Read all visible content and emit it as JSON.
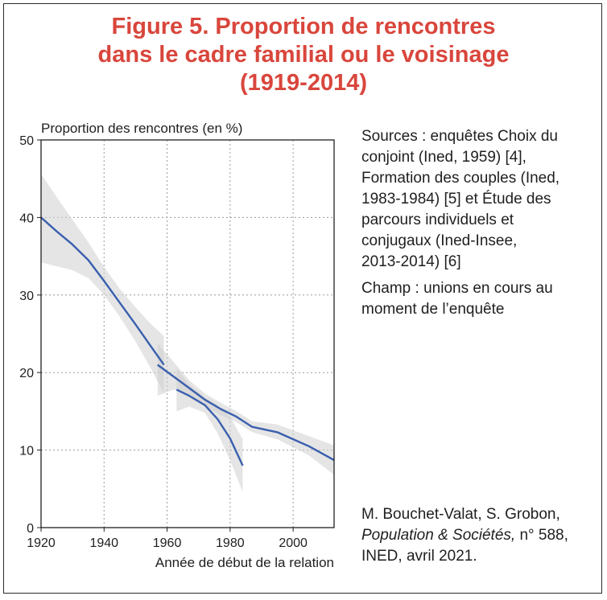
{
  "title": {
    "line1": "Figure 5. Proportion de rencontres",
    "line2": "dans le cadre familial ou le voisinage",
    "line3": "(1919-2014)"
  },
  "notes": {
    "sources": [
      "Sources : enquêtes Choix du",
      "conjoint (Ined, 1959) [4],",
      "Formation des couples (Ined,",
      "1983-1984) [5] et Étude des",
      "parcours individuels et",
      "conjugaux (Ined-Insee,",
      "2013-2014) [6]"
    ],
    "champ": [
      "Champ : unions en cours au",
      "moment de l’enquête"
    ],
    "credit": {
      "line1": "M. Bouchet-Valat, S. Grobon,",
      "line2_italic": "Population & Sociétés,",
      "line2_rest": " n° 588,",
      "line3": "INED, avril 2021."
    }
  },
  "colors": {
    "title": "#d9463c",
    "line": "#3a5fae",
    "band": "#cfcfcf"
  },
  "chart_data": {
    "type": "line",
    "title": "",
    "ylabel": "Proportion des rencontres (en %)",
    "xlabel": "Année de début de la relation",
    "xlim": [
      1920,
      2013
    ],
    "ylim": [
      0,
      50
    ],
    "xticks": [
      1920,
      1940,
      1960,
      1980,
      2000
    ],
    "yticks": [
      0,
      10,
      20,
      30,
      40,
      50
    ],
    "grid": true,
    "series": [
      {
        "x": [
          1920,
          1925,
          1930,
          1935,
          1940,
          1945,
          1950,
          1955,
          1959
        ],
        "y": [
          40.0,
          38.2,
          36.5,
          34.5,
          31.8,
          29.0,
          26.2,
          23.3,
          21.0
        ],
        "ci_low": [
          34.2,
          33.7,
          33.2,
          32.2,
          30.0,
          27.2,
          24.0,
          20.4,
          17.3
        ],
        "ci_high": [
          45.6,
          42.6,
          39.7,
          36.8,
          33.6,
          30.8,
          28.4,
          26.2,
          24.7
        ]
      },
      {
        "x": [
          1957,
          1962,
          1967,
          1972,
          1977,
          1982,
          1987,
          1995,
          2005,
          2013
        ],
        "y": [
          21.0,
          19.5,
          18.0,
          16.5,
          15.3,
          14.3,
          13.0,
          12.3,
          10.5,
          8.7
        ],
        "ci_low": [
          17.0,
          17.8,
          17.1,
          15.7,
          14.5,
          13.6,
          12.3,
          11.4,
          9.3,
          6.8
        ],
        "ci_high": [
          23.8,
          21.4,
          19.0,
          17.3,
          16.1,
          15.0,
          13.7,
          13.3,
          11.8,
          10.6
        ]
      },
      {
        "x": [
          1963,
          1967,
          1972,
          1976,
          1980,
          1984
        ],
        "y": [
          17.8,
          17.0,
          15.8,
          14.0,
          11.5,
          8.0
        ],
        "ci_low": [
          15.0,
          15.6,
          14.8,
          12.2,
          8.7,
          4.6
        ],
        "ci_high": [
          20.6,
          18.5,
          16.8,
          15.8,
          14.3,
          11.4
        ]
      }
    ]
  }
}
